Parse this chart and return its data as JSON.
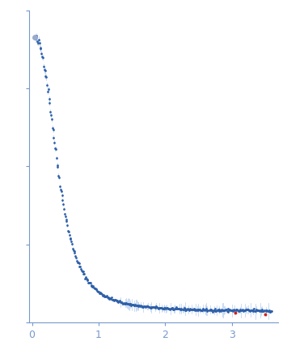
{
  "title": "",
  "xlabel": "",
  "ylabel": "",
  "xlim": [
    -0.05,
    3.7
  ],
  "ylim": [
    -0.02,
    0.55
  ],
  "bg_color": "#ffffff",
  "point_color": "#2d5fa8",
  "error_color": "#a8c4e8",
  "outlier_color": "#cc2222",
  "axis_color": "#7799cc",
  "tick_color": "#7799cc",
  "xticks": [
    0,
    1,
    2,
    3
  ],
  "seed": 42,
  "n_points": 350,
  "q_max": 3.6,
  "q_min": 0.04,
  "I0": 0.5,
  "figsize": [
    3.55,
    4.37
  ],
  "dpi": 100
}
